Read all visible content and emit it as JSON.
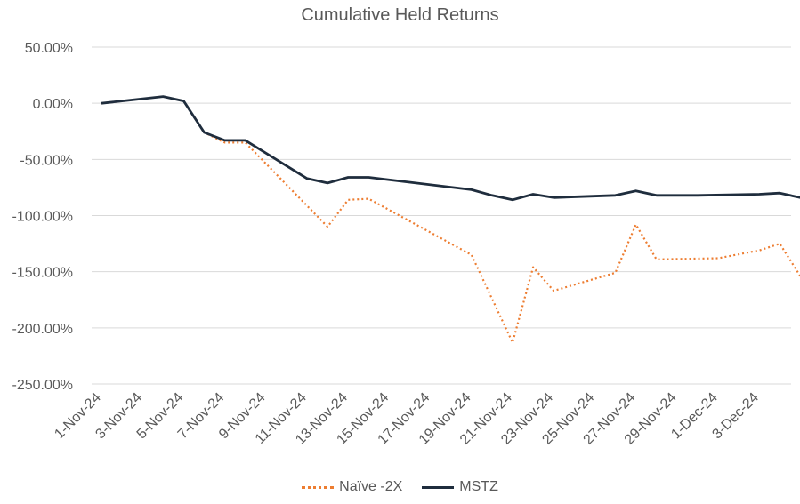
{
  "chart_data": {
    "type": "line",
    "title": "Cumulative Held Returns",
    "xlabel": "",
    "ylabel": "",
    "ylim": [
      -250,
      50
    ],
    "y_ticks": [
      50,
      0,
      -50,
      -100,
      -150,
      -200,
      -250
    ],
    "y_tick_labels": [
      "50.00%",
      "0.00%",
      "-50.00%",
      "-100.00%",
      "-150.00%",
      "-200.00%",
      "-250.00%"
    ],
    "x_tick_labels": [
      "1-Nov-24",
      "3-Nov-24",
      "5-Nov-24",
      "7-Nov-24",
      "9-Nov-24",
      "11-Nov-24",
      "13-Nov-24",
      "15-Nov-24",
      "17-Nov-24",
      "19-Nov-24",
      "21-Nov-24",
      "23-Nov-24",
      "25-Nov-24",
      "27-Nov-24",
      "29-Nov-24",
      "1-Dec-24",
      "3-Dec-24"
    ],
    "grid": true,
    "legend_position": "bottom",
    "series": [
      {
        "name": "Naïve -2X",
        "color": "#ED7D31",
        "style": "dotted",
        "points": [
          [
            "1-Nov-24",
            0
          ],
          [
            "4-Nov-24",
            6
          ],
          [
            "5-Nov-24",
            2
          ],
          [
            "6-Nov-24",
            -26
          ],
          [
            "7-Nov-24",
            -35
          ],
          [
            "8-Nov-24",
            -35
          ],
          [
            "12-Nov-24",
            -110
          ],
          [
            "13-Nov-24",
            -86
          ],
          [
            "14-Nov-24",
            -85
          ],
          [
            "19-Nov-24",
            -135
          ],
          [
            "21-Nov-24",
            -213
          ],
          [
            "22-Nov-24",
            -146
          ],
          [
            "23-Nov-24",
            -167
          ],
          [
            "26-Nov-24",
            -151
          ],
          [
            "27-Nov-24",
            -108
          ],
          [
            "28-Nov-24",
            -139
          ],
          [
            "1-Dec-24",
            -138
          ],
          [
            "3-Dec-24",
            -131
          ],
          [
            "4-Dec-24",
            -125
          ],
          [
            "5-Dec-24",
            -154
          ]
        ]
      },
      {
        "name": "MSTZ",
        "color": "#1F2D3D",
        "style": "solid",
        "points": [
          [
            "1-Nov-24",
            0
          ],
          [
            "4-Nov-24",
            6
          ],
          [
            "5-Nov-24",
            2
          ],
          [
            "6-Nov-24",
            -26
          ],
          [
            "7-Nov-24",
            -33
          ],
          [
            "8-Nov-24",
            -33
          ],
          [
            "11-Nov-24",
            -67
          ],
          [
            "12-Nov-24",
            -71
          ],
          [
            "13-Nov-24",
            -66
          ],
          [
            "14-Nov-24",
            -66
          ],
          [
            "19-Nov-24",
            -77
          ],
          [
            "20-Nov-24",
            -82
          ],
          [
            "21-Nov-24",
            -86
          ],
          [
            "22-Nov-24",
            -81
          ],
          [
            "23-Nov-24",
            -84
          ],
          [
            "26-Nov-24",
            -82
          ],
          [
            "27-Nov-24",
            -78
          ],
          [
            "28-Nov-24",
            -82
          ],
          [
            "30-Nov-24",
            -82
          ],
          [
            "3-Dec-24",
            -81
          ],
          [
            "4-Dec-24",
            -80
          ],
          [
            "5-Dec-24",
            -84
          ]
        ]
      }
    ]
  }
}
